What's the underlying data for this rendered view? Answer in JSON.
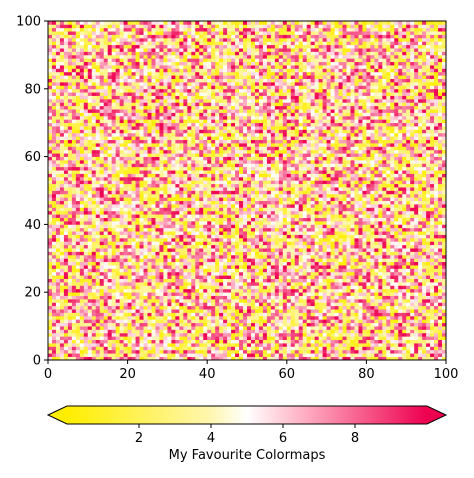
{
  "chart_data": {
    "type": "heatmap",
    "title": "",
    "xlabel": "",
    "ylabel": "",
    "xlim": [
      0,
      100
    ],
    "ylim": [
      0,
      100
    ],
    "grid": false,
    "x_ticks": [
      "0",
      "20",
      "40",
      "60",
      "80",
      "100"
    ],
    "y_ticks": [
      "0",
      "20",
      "40",
      "60",
      "80",
      "100"
    ],
    "grid_size": [
      100,
      100
    ],
    "values_description": "uniform random values in [0, 10]",
    "value_range": [
      0,
      10
    ],
    "colorbar": {
      "label": "My Favourite Colormaps",
      "orientation": "horizontal",
      "position": "bottom",
      "extend": "both",
      "ticks": [
        "2",
        "4",
        "6",
        "8"
      ],
      "range": [
        0,
        10
      ],
      "colormap_stops": [
        {
          "value": 0,
          "color": "#ffee00"
        },
        {
          "value": 4,
          "color": "#fff6b0"
        },
        {
          "value": 5,
          "color": "#ffffff"
        },
        {
          "value": 6.5,
          "color": "#ffb3c6"
        },
        {
          "value": 10,
          "color": "#ee0050"
        }
      ]
    }
  }
}
